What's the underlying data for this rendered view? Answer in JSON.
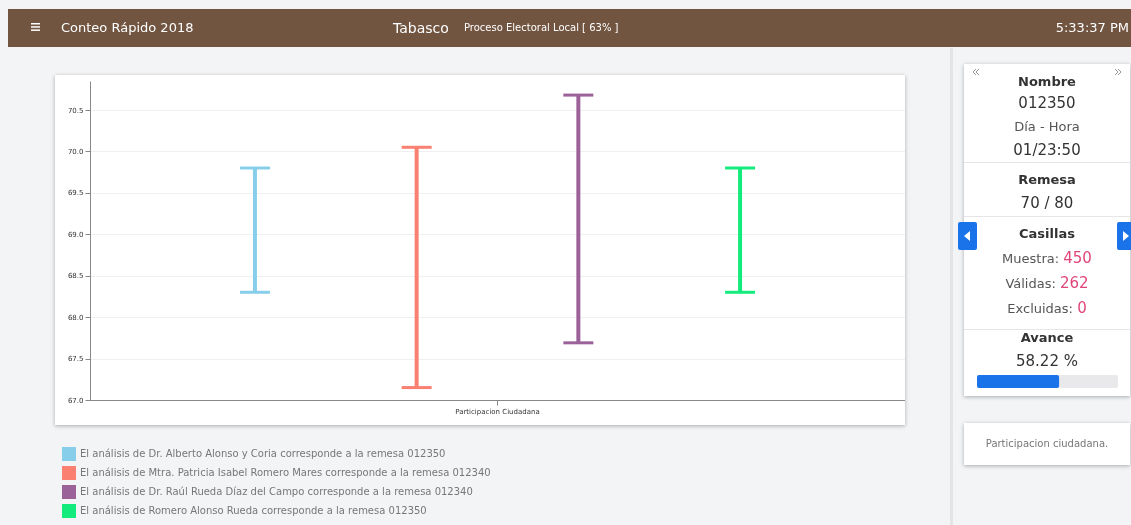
{
  "chart_data": [
    {
      "type": "other",
      "title": "Conteo Rápido 2018",
      "annotations": [
        "Tabasco",
        "Proceso Electoral Local [ 63% ]",
        "5:33:37 PM"
      ]
    },
    {
      "type": "bar",
      "categories": [
        "Participacion Ciudadana"
      ],
      "ylim": [
        67.0,
        70.85
      ],
      "yticks": [
        {
          "value": 67,
          "label": "67.0"
        },
        67.5,
        {
          "value": 68,
          "label": "68.0"
        },
        68.5,
        {
          "value": 69,
          "label": "69.0"
        },
        69.5,
        {
          "value": 70,
          "label": "70.0"
        },
        70.5
      ],
      "grid": "y",
      "legend": "bottom left",
      "series": [
        {
          "name": "El análisis de Dr. Alberto Alonso y Coria corresponde a la remesa 012350",
          "color": "#87ceeb",
          "values": [
            1.5
          ],
          "base": [
            68.3
          ]
        },
        {
          "name": "El análisis de Mtra. Patricia Isabel Romero Mares corresponde a la remesa 012340",
          "color": "#fa8072",
          "values": [
            2.9
          ],
          "base": [
            67.15
          ]
        },
        {
          "name": "El análisis de Dr. Raúl Rueda Díaz del Campo corresponde a la remesa 012340",
          "color": "#9b6199",
          "values": [
            2.99
          ],
          "base": [
            67.69
          ]
        },
        {
          "name": "El análisis de Romero Alonso Rueda corresponde a la remesa 012350",
          "color": "#14eb7d",
          "values": [
            1.5
          ],
          "base": [
            68.3
          ]
        }
      ]
    },
    {
      "type": "other",
      "annotations": [
        "Nombre",
        "012350",
        "Día - Hora",
        "01/23:50",
        "Remesa",
        "70 / 80",
        "Casillas",
        "Muestra: 450",
        "Válidas: 262",
        "Excluidas: 0",
        "Avance",
        "58.22 %",
        "Participacion ciudadana."
      ]
    }
  ]
}
